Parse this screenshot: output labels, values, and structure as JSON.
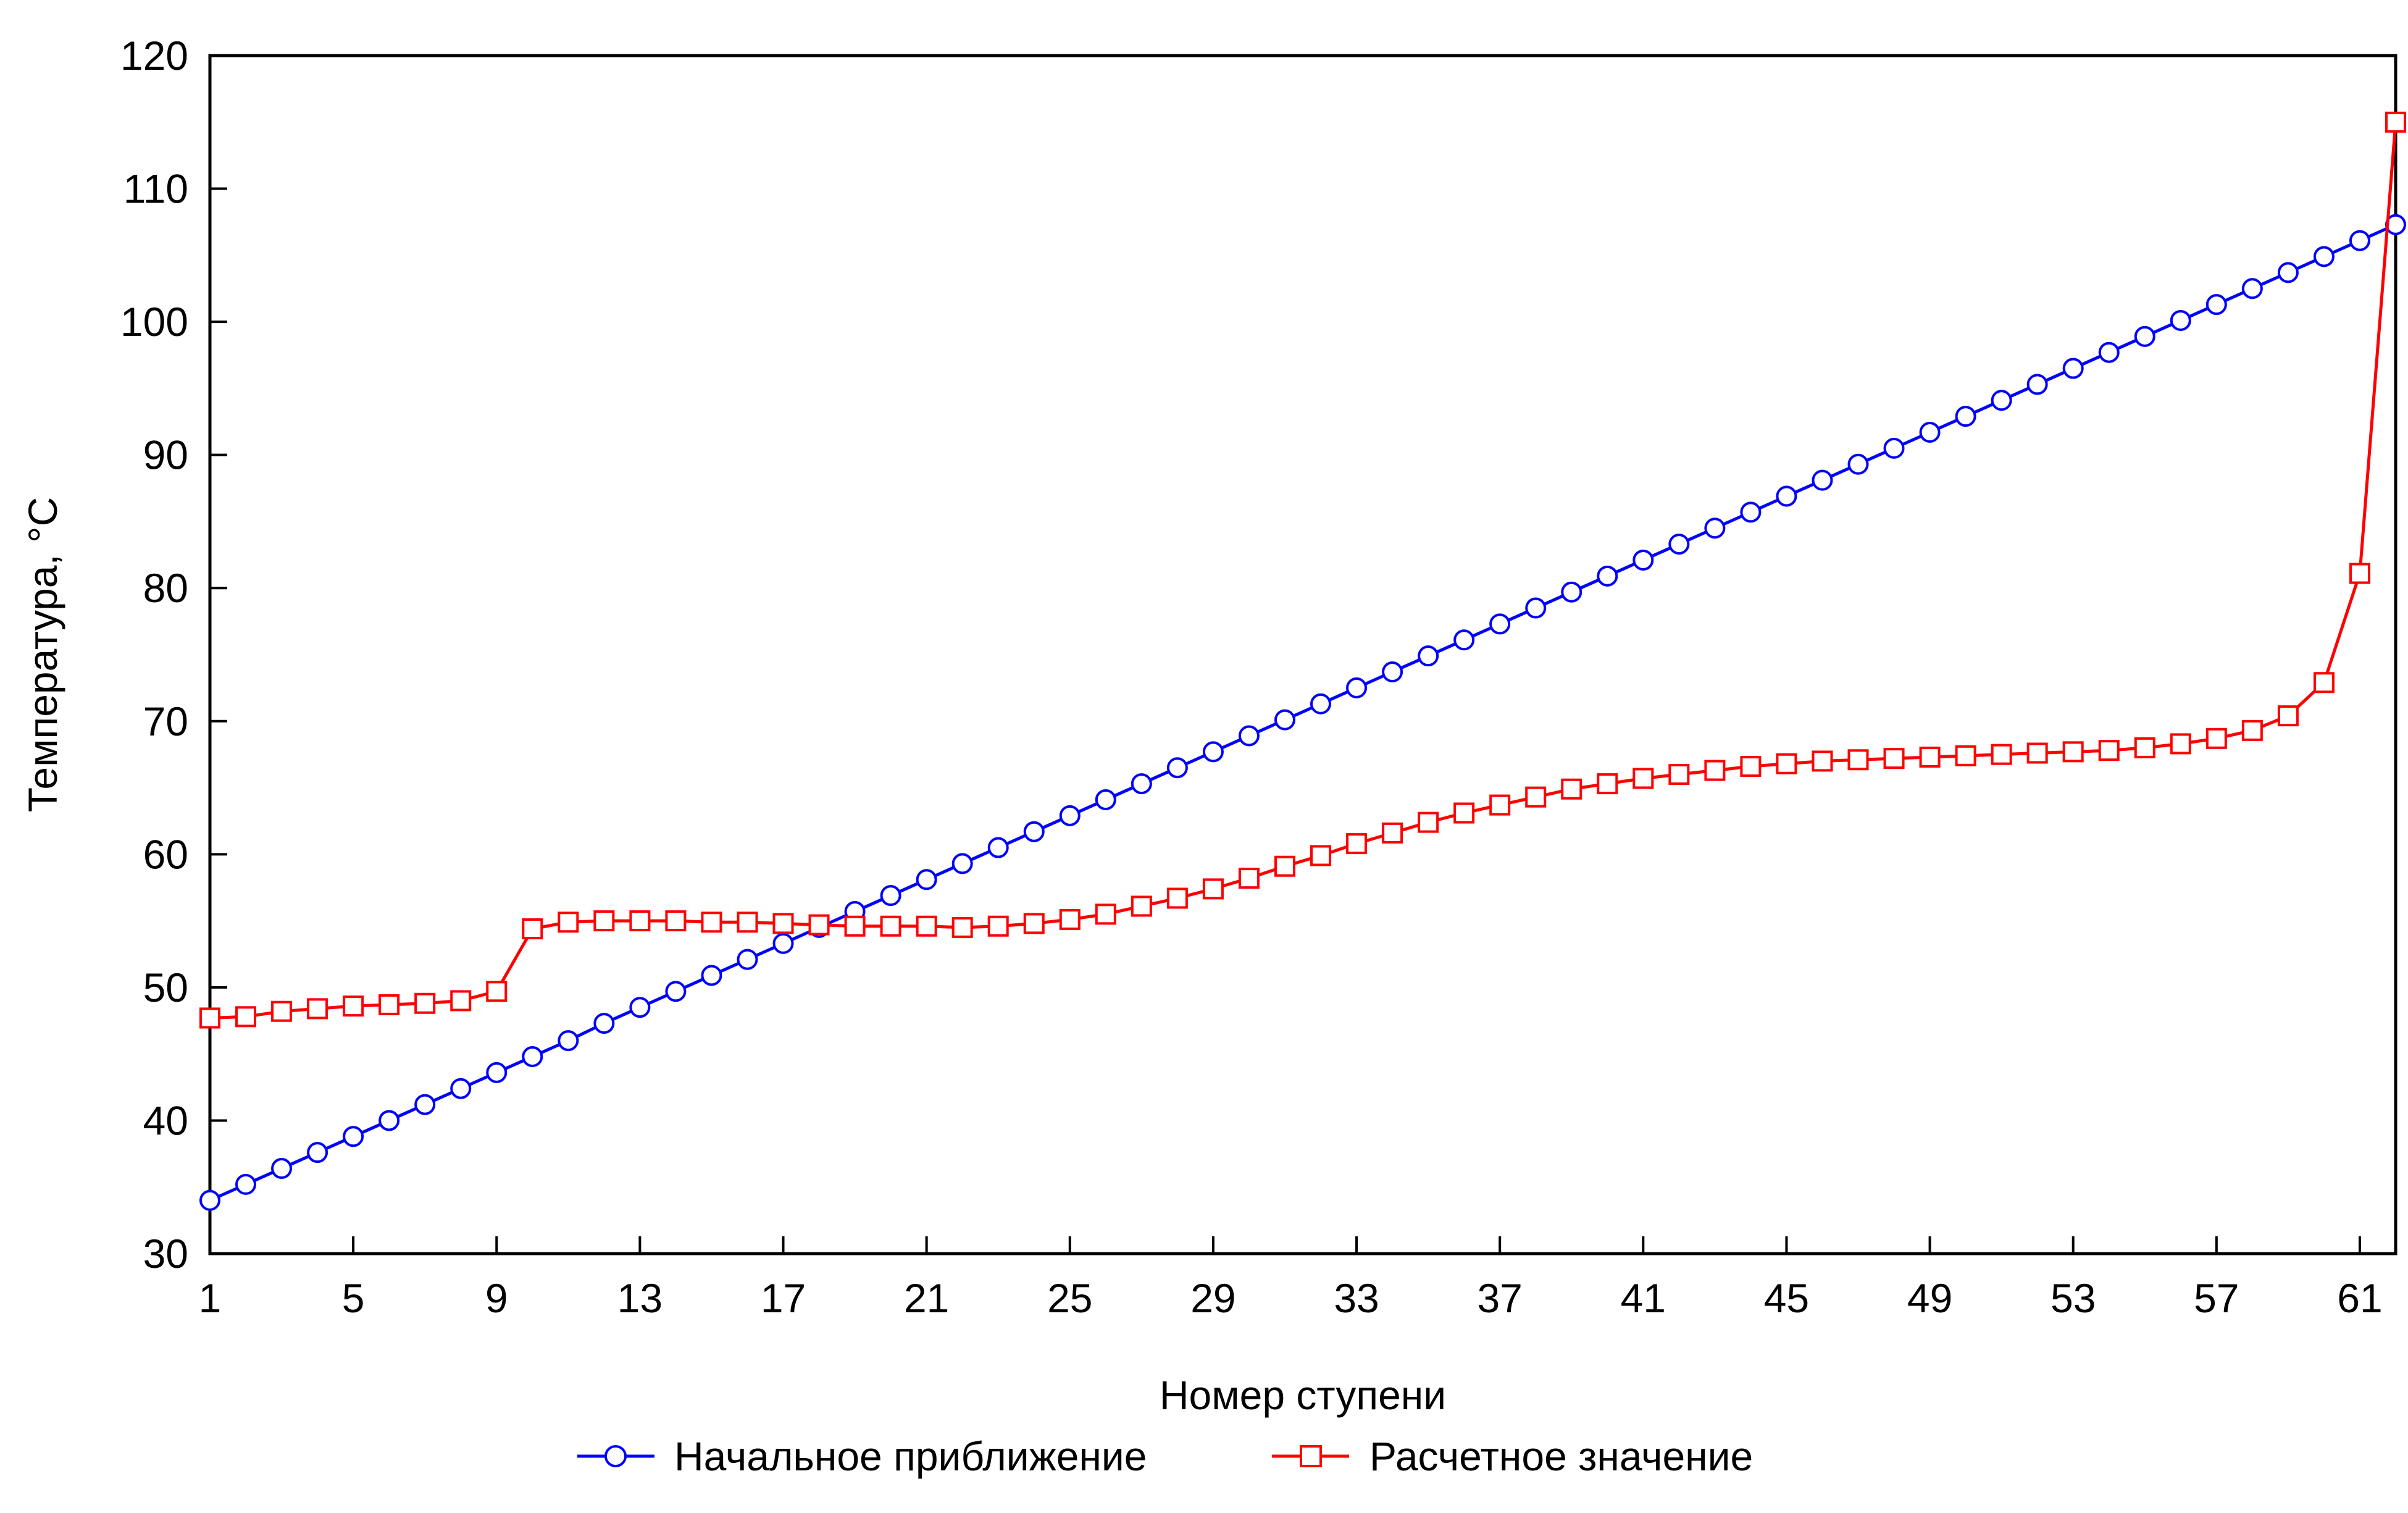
{
  "chart_data": {
    "type": "line",
    "xlabel": "Номер ступени",
    "ylabel": "Температура, °С",
    "xlim": [
      1,
      62
    ],
    "ylim": [
      30,
      120
    ],
    "xticks": [
      1,
      5,
      9,
      13,
      17,
      21,
      25,
      29,
      33,
      37,
      41,
      45,
      49,
      53,
      57,
      61
    ],
    "yticks": [
      30,
      40,
      50,
      60,
      70,
      80,
      90,
      100,
      110,
      120
    ],
    "grid": false,
    "legend": "bottom",
    "x": [
      1,
      2,
      3,
      4,
      5,
      6,
      7,
      8,
      9,
      10,
      11,
      12,
      13,
      14,
      15,
      16,
      17,
      18,
      19,
      20,
      21,
      22,
      23,
      24,
      25,
      26,
      27,
      28,
      29,
      30,
      31,
      32,
      33,
      34,
      35,
      36,
      37,
      38,
      39,
      40,
      41,
      42,
      43,
      44,
      45,
      46,
      47,
      48,
      49,
      50,
      51,
      52,
      53,
      54,
      55,
      56,
      57,
      58,
      59,
      60,
      61,
      62
    ],
    "series": [
      {
        "name": "Начальное приближение",
        "color": "#0000ff",
        "marker": "circle",
        "values": [
          34.0,
          35.2,
          36.4,
          37.6,
          38.8,
          40.0,
          41.2,
          42.4,
          43.6,
          44.8,
          46.0,
          47.3,
          48.5,
          49.7,
          50.9,
          52.1,
          53.3,
          54.5,
          55.7,
          56.9,
          58.1,
          59.3,
          60.5,
          61.7,
          62.9,
          64.1,
          65.3,
          66.5,
          67.7,
          68.9,
          70.1,
          71.3,
          72.5,
          73.7,
          74.9,
          76.1,
          77.3,
          78.5,
          79.7,
          80.9,
          82.1,
          83.3,
          84.5,
          85.7,
          86.9,
          88.1,
          89.3,
          90.5,
          91.7,
          92.9,
          94.1,
          95.3,
          96.5,
          97.7,
          98.9,
          100.1,
          101.3,
          102.5,
          103.7,
          104.9,
          106.1,
          107.3
        ]
      },
      {
        "name": "Расчетное значение",
        "color": "#ff0000",
        "marker": "square",
        "values": [
          47.7,
          47.8,
          48.2,
          48.4,
          48.6,
          48.7,
          48.8,
          49.0,
          49.7,
          54.4,
          54.9,
          55.0,
          55.0,
          55.0,
          54.9,
          54.9,
          54.8,
          54.7,
          54.6,
          54.6,
          54.6,
          54.5,
          54.6,
          54.8,
          55.1,
          55.5,
          56.1,
          56.7,
          57.4,
          58.2,
          59.1,
          59.9,
          60.8,
          61.6,
          62.4,
          63.1,
          63.7,
          64.3,
          64.9,
          65.3,
          65.7,
          66.0,
          66.3,
          66.6,
          66.8,
          67.0,
          67.1,
          67.2,
          67.3,
          67.4,
          67.5,
          67.6,
          67.7,
          67.8,
          68.0,
          68.3,
          68.7,
          69.3,
          70.4,
          72.9,
          81.1,
          115.0
        ]
      }
    ]
  }
}
